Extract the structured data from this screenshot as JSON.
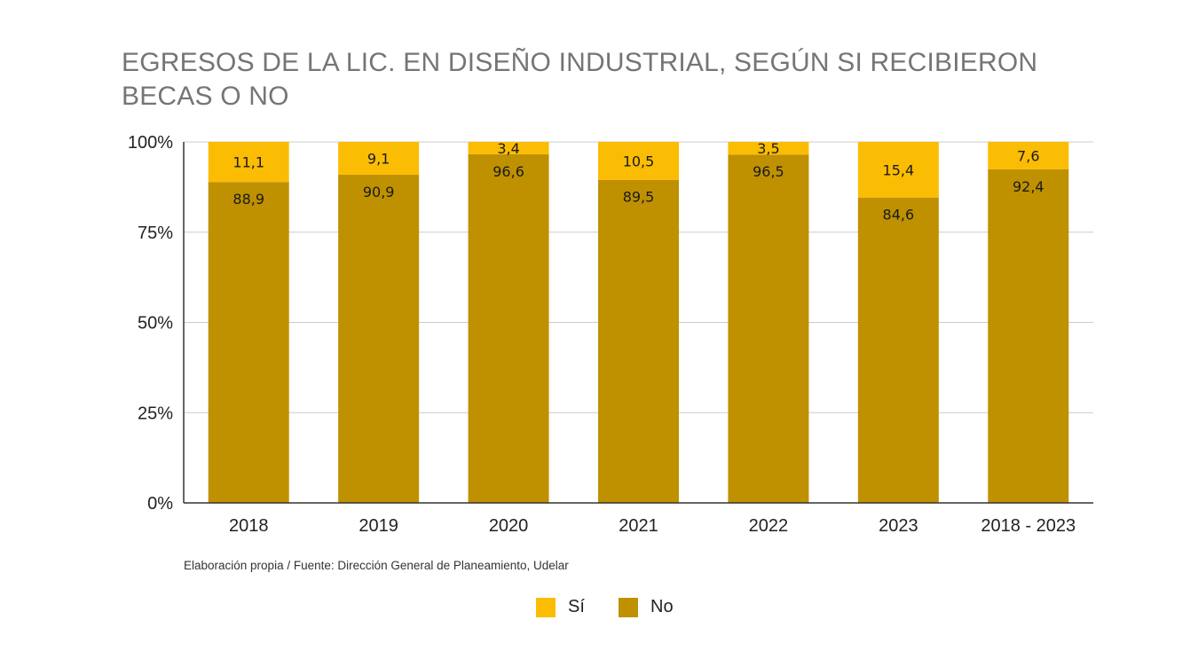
{
  "title": "EGRESOS DE LA LIC. EN DISEÑO INDUSTRIAL, SEGÚN SI RECIBIERON BECAS O NO",
  "source": "Elaboración propia / Fuente: Dirección General de Planeamiento, Udelar",
  "chart_data": {
    "type": "bar",
    "stacked": true,
    "categories": [
      "2018",
      "2019",
      "2020",
      "2021",
      "2022",
      "2023",
      "2018 - 2023"
    ],
    "series": [
      {
        "name": "No",
        "color": "#bf9000",
        "values": [
          88.9,
          90.9,
          96.6,
          89.5,
          96.5,
          84.6,
          92.4
        ],
        "labels": [
          "88,9",
          "90,9",
          "96,6",
          "89,5",
          "96,5",
          "84,6",
          "92,4"
        ]
      },
      {
        "name": "Sí",
        "color": "#fbbc04",
        "values": [
          11.1,
          9.1,
          3.4,
          10.5,
          3.5,
          15.4,
          7.6
        ],
        "labels": [
          "11,1",
          "9,1",
          "3,4",
          "10,5",
          "3,5",
          "15,4",
          "7,6"
        ]
      }
    ],
    "yticks": [
      "0%",
      "25%",
      "50%",
      "75%",
      "100%"
    ],
    "ylim": [
      0,
      100
    ],
    "grid": true,
    "legend": "bottom"
  },
  "legend": [
    {
      "name": "Sí",
      "color": "#fbbc04"
    },
    {
      "name": "No",
      "color": "#bf9000"
    }
  ]
}
